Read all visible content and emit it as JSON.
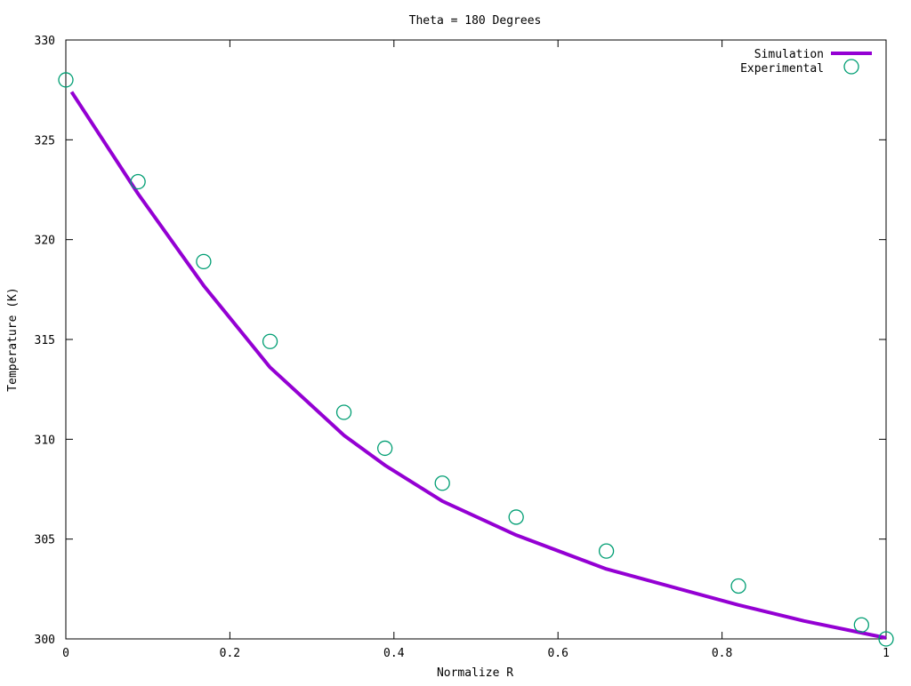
{
  "chart_data": {
    "type": "line",
    "title": "Theta = 180 Degrees",
    "xlabel": "Normalize R",
    "ylabel": "Temperature (K)",
    "xlim": [
      0,
      1
    ],
    "ylim": [
      300,
      330
    ],
    "xticks": [
      "0",
      "0.2",
      "0.4",
      "0.6",
      "0.8",
      "1"
    ],
    "xtick_values": [
      0,
      0.2,
      0.4,
      0.6,
      0.8,
      1
    ],
    "yticks": [
      "300",
      "305",
      "310",
      "315",
      "320",
      "325",
      "330"
    ],
    "ytick_values": [
      300,
      305,
      310,
      315,
      320,
      325,
      330
    ],
    "grid": false,
    "legend_position": "top-right",
    "series": [
      {
        "name": "Simulation",
        "style": "line",
        "color": "#9400d3",
        "x": [
          0.007,
          0.088,
          0.168,
          0.249,
          0.339,
          0.389,
          0.459,
          0.549,
          0.659,
          0.82,
          0.9,
          1.0
        ],
        "y": [
          327.4,
          322.3,
          317.7,
          313.6,
          310.2,
          308.7,
          306.9,
          305.2,
          303.5,
          301.7,
          300.9,
          300.05
        ]
      },
      {
        "name": "Experimental",
        "style": "points",
        "marker": "open-circle",
        "color": "#009e73",
        "x": [
          0.0,
          0.088,
          0.168,
          0.249,
          0.339,
          0.389,
          0.459,
          0.549,
          0.659,
          0.82,
          0.97,
          1.0
        ],
        "y": [
          328.0,
          322.9,
          318.9,
          314.9,
          311.35,
          309.55,
          307.8,
          306.1,
          304.4,
          302.65,
          300.7,
          300.0
        ]
      }
    ]
  }
}
